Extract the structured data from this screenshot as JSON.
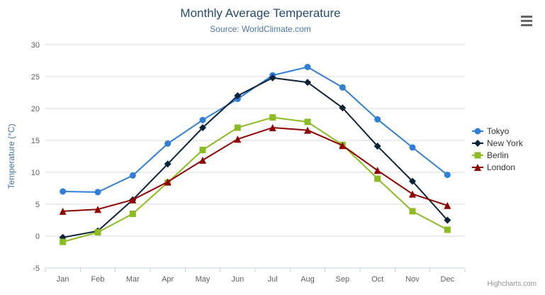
{
  "chart": {
    "title": "Monthly Average Temperature",
    "subtitle": "Source: WorldClimate.com",
    "credits": "Highcharts.com",
    "context_menu_icon": "hamburger-icon"
  },
  "chart_data": {
    "type": "line",
    "title": "Monthly Average Temperature",
    "subtitle": "Source: WorldClimate.com",
    "xlabel": "",
    "ylabel": "Temperature (°C)",
    "categories": [
      "Jan",
      "Feb",
      "Mar",
      "Apr",
      "May",
      "Jun",
      "Jul",
      "Aug",
      "Sep",
      "Oct",
      "Nov",
      "Dec"
    ],
    "yticks": [
      -5,
      0,
      5,
      10,
      15,
      20,
      25,
      30
    ],
    "ylim": [
      -5,
      30
    ],
    "grid": "horizontal",
    "legend_position": "right-middle",
    "series": [
      {
        "name": "Tokyo",
        "color": "#2f7ed8",
        "marker": "circle",
        "values": [
          7.0,
          6.9,
          9.5,
          14.5,
          18.2,
          21.5,
          25.2,
          26.5,
          23.3,
          18.3,
          13.9,
          9.6
        ]
      },
      {
        "name": "New York",
        "color": "#0d233a",
        "marker": "diamond",
        "values": [
          -0.2,
          0.8,
          5.7,
          11.3,
          17.0,
          22.0,
          24.8,
          24.1,
          20.1,
          14.1,
          8.6,
          2.5
        ]
      },
      {
        "name": "Berlin",
        "color": "#8bbc21",
        "marker": "square",
        "values": [
          -0.9,
          0.6,
          3.5,
          8.4,
          13.5,
          17.0,
          18.6,
          17.9,
          14.3,
          9.0,
          3.9,
          1.0
        ]
      },
      {
        "name": "London",
        "color": "#910000",
        "marker": "triangle",
        "values": [
          3.9,
          4.2,
          5.7,
          8.5,
          11.9,
          15.2,
          17.0,
          16.6,
          14.2,
          10.3,
          6.6,
          4.8
        ]
      }
    ]
  }
}
